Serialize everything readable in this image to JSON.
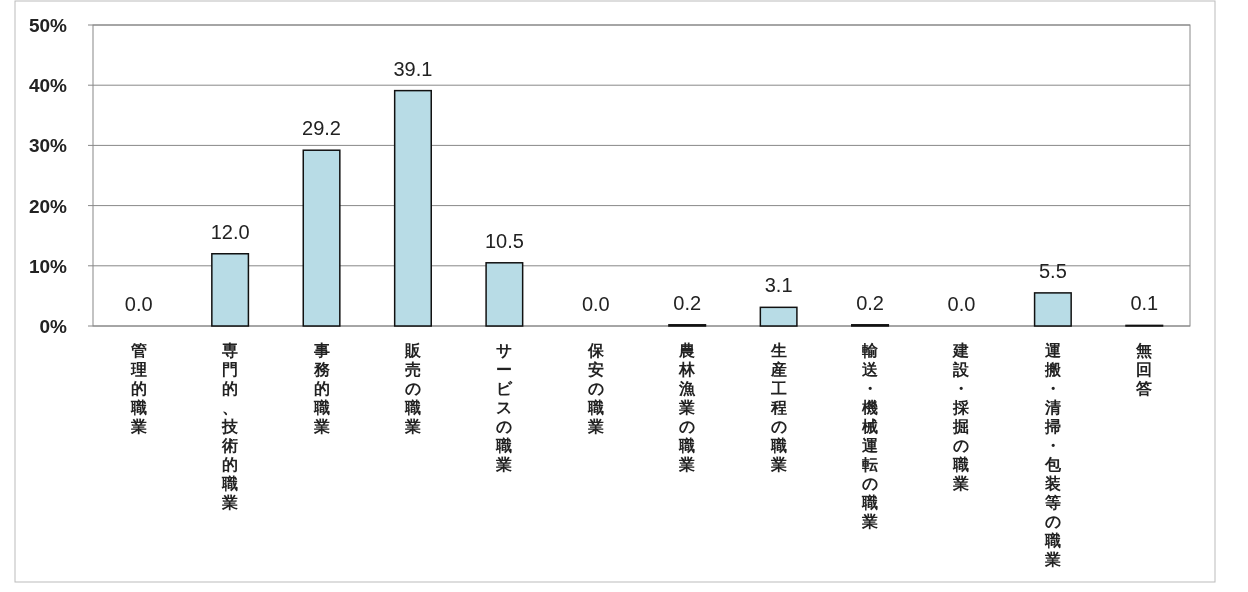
{
  "chart_data": {
    "type": "bar",
    "categories": [
      "管理的職業",
      "専門的、技術的職業",
      "事務的職業",
      "販売の職業",
      "サービスの職業",
      "保安の職業",
      "農林漁業の職業",
      "生産工程の職業",
      "輸送・機械運転の職業",
      "建設・採掘の職業",
      "運搬・清掃・包装等の職業",
      "無回答"
    ],
    "values": [
      0,
      12,
      29.2,
      39.1,
      10.5,
      0,
      0.2,
      3.1,
      0.2,
      0,
      5.5,
      0.1
    ],
    "value_labels": [
      "0.0",
      "12.0",
      "29.2",
      "39.1",
      "10.5",
      "0.0",
      "0.2",
      "3.1",
      "0.2",
      "0.0",
      "5.5",
      "0.1"
    ],
    "color": "#b8dce6",
    "ylim": [
      0,
      50
    ],
    "yticks": [
      {
        "value": 0,
        "label": "0%"
      },
      {
        "value": 10,
        "label": "10%"
      },
      {
        "value": 20,
        "label": "20%"
      },
      {
        "value": 30,
        "label": "30%"
      },
      {
        "value": 40,
        "label": "40%"
      },
      {
        "value": 50,
        "label": "50%"
      }
    ],
    "grid": "y"
  }
}
